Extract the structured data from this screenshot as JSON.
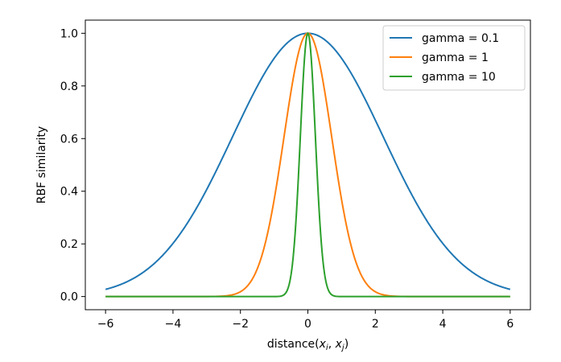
{
  "chart_data": {
    "type": "line",
    "title": "",
    "xlabel": "distance",
    "xlabel_args": "x",
    "xlabel_sub_i": "i",
    "xlabel_sub_j": "j",
    "ylabel": "RBF similarity",
    "xlim": [
      -6.6,
      6.6
    ],
    "ylim": [
      -0.05,
      1.05
    ],
    "xticks": [
      -6,
      -4,
      -2,
      0,
      2,
      4,
      6
    ],
    "xtick_labels": [
      "−6",
      "−4",
      "−2",
      "0",
      "2",
      "4",
      "6"
    ],
    "yticks": [
      0.0,
      0.2,
      0.4,
      0.6,
      0.8,
      1.0
    ],
    "ytick_labels": [
      "0.0",
      "0.2",
      "0.4",
      "0.6",
      "0.8",
      "1.0"
    ],
    "grid": false,
    "legend_position": "top-right",
    "function": "exp(-gamma * x^2)",
    "x_range": [
      -6,
      6
    ],
    "series": [
      {
        "name": "gamma = 0.1",
        "gamma": 0.1,
        "color": "#1f77b4"
      },
      {
        "name": "gamma = 1",
        "gamma": 1,
        "color": "#ff7f0e"
      },
      {
        "name": "gamma = 10",
        "gamma": 10,
        "color": "#2ca02c"
      }
    ]
  }
}
